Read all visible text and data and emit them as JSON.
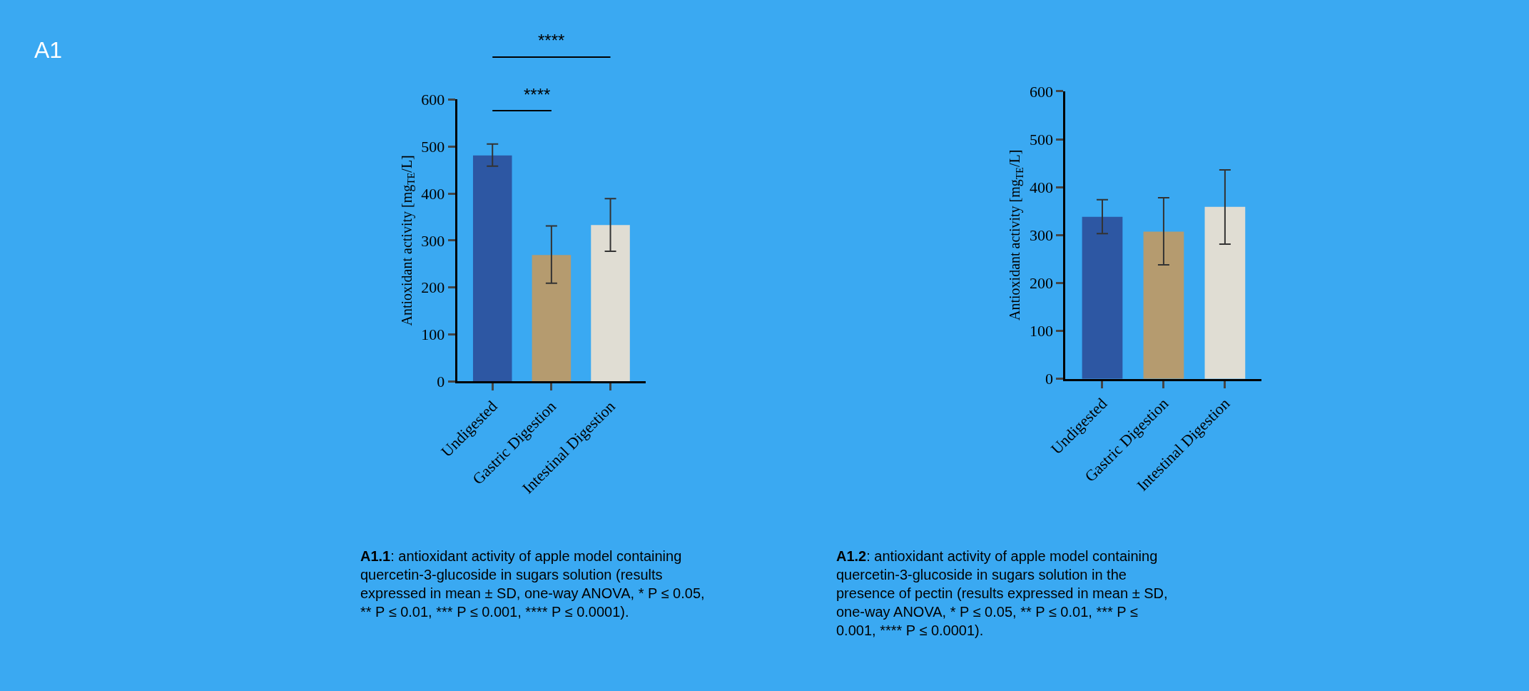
{
  "chart_data": [
    {
      "type": "bar",
      "categories": [
        "Undigested",
        "Gastric Digestion",
        "Intestinal Digestion"
      ],
      "values": [
        481,
        269,
        333
      ],
      "colors": [
        "#2d57a3",
        "#b59b6f",
        "#e0ddd3"
      ],
      "errors": [
        [
          458,
          505
        ],
        [
          209,
          331
        ],
        [
          277,
          389
        ]
      ],
      "ylabel": "Antioxidant activity [mg$_{TE}$/L]",
      "ylim": [
        0,
        600
      ],
      "yticks": [
        0,
        100,
        200,
        300,
        400,
        500,
        600
      ],
      "grid": false,
      "annotations": [
        "****",
        "****",
        "A1",
        "A1.1: antioxidant activity of apple model containing quercetin-3-glucoside in sugars solution (results expressed in mean ± SD, one-way ANOVA, * P ≤ 0.05, ** P ≤ 0.01, *** P ≤ 0.001, **** P ≤ 0.0001)."
      ]
    },
    {
      "type": "bar",
      "categories": [
        "Undigested",
        "Gastric Digestion",
        "Intestinal Digestion"
      ],
      "values": [
        338,
        307,
        359
      ],
      "colors": [
        "#2d57a3",
        "#b59b6f",
        "#e0ddd3"
      ],
      "errors": [
        [
          303,
          374
        ],
        [
          238,
          378
        ],
        [
          281,
          436
        ]
      ],
      "ylabel": "Antioxidant activity [mg$_{TE}$/L]",
      "ylim": [
        0,
        600
      ],
      "yticks": [
        0,
        100,
        200,
        300,
        400,
        500,
        600
      ],
      "grid": false,
      "annotations": [
        "A1.2: antioxidant activity of apple model containing quercetin-3-glucoside in sugars solution in the presence of pectin (results expressed in mean ± SD, one-way ANOVA, * P ≤ 0.05, ** P ≤ 0.01, *** P ≤ 0.001, **** P ≤ 0.0001)."
      ]
    }
  ]
}
